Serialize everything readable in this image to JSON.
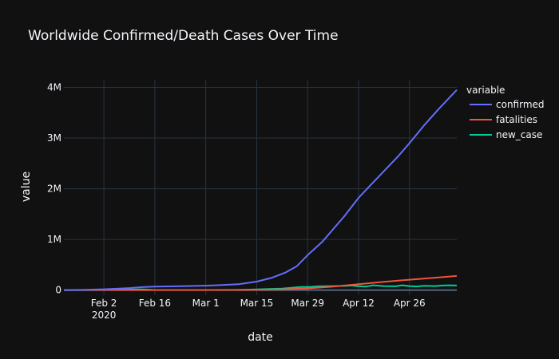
{
  "chart_data": {
    "type": "line",
    "title": "Worldwide Confirmed/Death Cases Over Time",
    "xlabel": "date",
    "ylabel": "value",
    "legend_title": "variable",
    "legend_position": "right",
    "grid": true,
    "xlim": [
      "2020-01-22",
      "2020-05-09"
    ],
    "ylim": [
      -100000,
      4150000
    ],
    "x_ticks": [
      {
        "date": "2020-02-02",
        "label": "Feb 2",
        "sublabel": "2020"
      },
      {
        "date": "2020-02-16",
        "label": "Feb 16",
        "sublabel": ""
      },
      {
        "date": "2020-03-01",
        "label": "Mar 1",
        "sublabel": ""
      },
      {
        "date": "2020-03-15",
        "label": "Mar 15",
        "sublabel": ""
      },
      {
        "date": "2020-03-29",
        "label": "Mar 29",
        "sublabel": ""
      },
      {
        "date": "2020-04-12",
        "label": "Apr 12",
        "sublabel": ""
      },
      {
        "date": "2020-04-26",
        "label": "Apr 26",
        "sublabel": ""
      }
    ],
    "y_ticks": [
      {
        "value": 0,
        "label": "0"
      },
      {
        "value": 1000000,
        "label": "1M"
      },
      {
        "value": 2000000,
        "label": "2M"
      },
      {
        "value": 3000000,
        "label": "3M"
      },
      {
        "value": 4000000,
        "label": "4M"
      }
    ],
    "series": [
      {
        "name": "confirmed",
        "color": "#636efa",
        "points": [
          [
            "2020-01-22",
            600
          ],
          [
            "2020-01-28",
            6000
          ],
          [
            "2020-02-02",
            17000
          ],
          [
            "2020-02-09",
            40000
          ],
          [
            "2020-02-13",
            60000
          ],
          [
            "2020-02-16",
            70000
          ],
          [
            "2020-02-23",
            78000
          ],
          [
            "2020-03-01",
            88000
          ],
          [
            "2020-03-05",
            98000
          ],
          [
            "2020-03-10",
            118000
          ],
          [
            "2020-03-15",
            168000
          ],
          [
            "2020-03-19",
            240000
          ],
          [
            "2020-03-23",
            350000
          ],
          [
            "2020-03-26",
            470000
          ],
          [
            "2020-03-29",
            690000
          ],
          [
            "2020-04-02",
            950000
          ],
          [
            "2020-04-05",
            1200000
          ],
          [
            "2020-04-08",
            1450000
          ],
          [
            "2020-04-12",
            1820000
          ],
          [
            "2020-04-15",
            2050000
          ],
          [
            "2020-04-19",
            2350000
          ],
          [
            "2020-04-23",
            2650000
          ],
          [
            "2020-04-26",
            2900000
          ],
          [
            "2020-04-30",
            3250000
          ],
          [
            "2020-05-04",
            3570000
          ],
          [
            "2020-05-09",
            3950000
          ]
        ]
      },
      {
        "name": "fatalities",
        "color": "#ef553b",
        "points": [
          [
            "2020-01-22",
            17
          ],
          [
            "2020-02-16",
            1700
          ],
          [
            "2020-03-01",
            3000
          ],
          [
            "2020-03-15",
            6500
          ],
          [
            "2020-03-22",
            15000
          ],
          [
            "2020-03-29",
            34000
          ],
          [
            "2020-04-05",
            70000
          ],
          [
            "2020-04-12",
            115000
          ],
          [
            "2020-04-19",
            165000
          ],
          [
            "2020-04-26",
            205000
          ],
          [
            "2020-05-03",
            245000
          ],
          [
            "2020-05-09",
            280000
          ]
        ]
      },
      {
        "name": "new_case",
        "color": "#00cc96",
        "points": [
          [
            "2020-01-22",
            0
          ],
          [
            "2020-02-05",
            4000
          ],
          [
            "2020-02-12",
            15000
          ],
          [
            "2020-02-13",
            14000
          ],
          [
            "2020-02-16",
            2000
          ],
          [
            "2020-03-01",
            2000
          ],
          [
            "2020-03-10",
            4000
          ],
          [
            "2020-03-15",
            14000
          ],
          [
            "2020-03-22",
            30000
          ],
          [
            "2020-03-27",
            60000
          ],
          [
            "2020-03-30",
            65000
          ],
          [
            "2020-04-01",
            75000
          ],
          [
            "2020-04-05",
            80000
          ],
          [
            "2020-04-09",
            85000
          ],
          [
            "2020-04-10",
            90000
          ],
          [
            "2020-04-12",
            76000
          ],
          [
            "2020-04-14",
            70000
          ],
          [
            "2020-04-16",
            95000
          ],
          [
            "2020-04-19",
            80000
          ],
          [
            "2020-04-22",
            75000
          ],
          [
            "2020-04-24",
            95000
          ],
          [
            "2020-04-26",
            80000
          ],
          [
            "2020-04-28",
            72000
          ],
          [
            "2020-04-30",
            85000
          ],
          [
            "2020-05-03",
            80000
          ],
          [
            "2020-05-05",
            90000
          ],
          [
            "2020-05-07",
            95000
          ],
          [
            "2020-05-09",
            90000
          ]
        ]
      }
    ]
  }
}
